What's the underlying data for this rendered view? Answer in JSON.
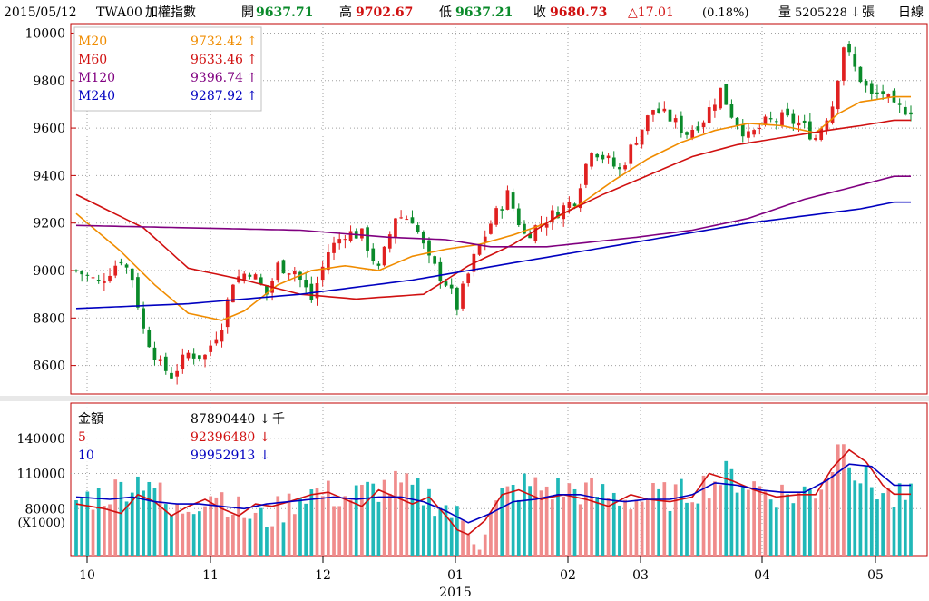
{
  "header": {
    "date": "2015/05/12",
    "symbol": "TWA00",
    "name": "加權指數",
    "open_label": "開",
    "open": "9637.71",
    "high_label": "高",
    "high": "9702.67",
    "low_label": "低",
    "low": "9637.21",
    "close_label": "收",
    "close": "9680.73",
    "change": "△17.01",
    "change_pct": "(0.18%)",
    "volume_label": "量",
    "volume": "5205228",
    "volume_arrow": "↓",
    "volume_unit": "張",
    "period": "日線"
  },
  "colors": {
    "up": "#e02020",
    "down": "#0a8a2a",
    "ma20": "#f08c00",
    "ma60": "#d01010",
    "ma120": "#800080",
    "ma240": "#0000c0",
    "vol_up": "#f08c8c",
    "vol_down": "#20b8b8",
    "vol_ma5": "#d01010",
    "vol_ma10": "#0000c0",
    "grid": "#a0a0a0",
    "axis": "#c00000"
  },
  "price_legend": [
    {
      "name": "M20",
      "value": "9732.42",
      "arrow": "↑"
    },
    {
      "name": "M60",
      "value": "9633.46",
      "arrow": "↑"
    },
    {
      "name": "M120",
      "value": "9396.74",
      "arrow": "↑"
    },
    {
      "name": "M240",
      "value": "9287.92",
      "arrow": "↑"
    }
  ],
  "volume_legend": [
    {
      "name": "金額",
      "value": "87890440",
      "arrow": "↓",
      "unit": "千"
    },
    {
      "name": "5",
      "value": "92396480",
      "arrow": "↓"
    },
    {
      "name": "10",
      "value": "99952913",
      "arrow": "↓"
    }
  ],
  "chart_data": [
    {
      "type": "candlestick",
      "y_ticks": [
        "10000",
        "9800",
        "9600",
        "9400",
        "9200",
        "9000",
        "8800",
        "8600"
      ],
      "ylim": [
        8480,
        10040
      ],
      "x_tick_labels": [
        "10",
        "11",
        "12",
        "01",
        "02",
        "03",
        "04",
        "05"
      ],
      "x_year_label": "2015",
      "sessions": 150,
      "ohlc_anchors": [
        [
          0,
          9000
        ],
        [
          4,
          8950
        ],
        [
          8,
          9050
        ],
        [
          10,
          8970
        ],
        [
          12,
          8750
        ],
        [
          15,
          8600
        ],
        [
          17,
          8560
        ],
        [
          20,
          8650
        ],
        [
          23,
          8640
        ],
        [
          26,
          8780
        ],
        [
          28,
          8960
        ],
        [
          31,
          9000
        ],
        [
          34,
          8900
        ],
        [
          36,
          9020
        ],
        [
          39,
          9000
        ],
        [
          42,
          8880
        ],
        [
          45,
          9080
        ],
        [
          48,
          9160
        ],
        [
          51,
          9150
        ],
        [
          54,
          9000
        ],
        [
          57,
          9230
        ],
        [
          60,
          9220
        ],
        [
          63,
          9040
        ],
        [
          66,
          8950
        ],
        [
          68,
          8850
        ],
        [
          71,
          9050
        ],
        [
          74,
          9200
        ],
        [
          77,
          9320
        ],
        [
          80,
          9150
        ],
        [
          83,
          9200
        ],
        [
          86,
          9250
        ],
        [
          89,
          9300
        ],
        [
          92,
          9520
        ],
        [
          95,
          9460
        ],
        [
          97,
          9420
        ],
        [
          100,
          9560
        ],
        [
          103,
          9680
        ],
        [
          106,
          9640
        ],
        [
          109,
          9580
        ],
        [
          112,
          9640
        ],
        [
          115,
          9760
        ],
        [
          117,
          9660
        ],
        [
          120,
          9560
        ],
        [
          123,
          9620
        ],
        [
          126,
          9640
        ],
        [
          129,
          9620
        ],
        [
          132,
          9560
        ],
        [
          135,
          9700
        ],
        [
          137,
          9950
        ],
        [
          139,
          9850
        ],
        [
          142,
          9730
        ],
        [
          144,
          9750
        ],
        [
          146,
          9680
        ]
      ],
      "series": [
        {
          "name": "M20",
          "points": [
            [
              0,
              9240
            ],
            [
              8,
              9080
            ],
            [
              14,
              8940
            ],
            [
              20,
              8820
            ],
            [
              26,
              8790
            ],
            [
              30,
              8830
            ],
            [
              36,
              8940
            ],
            [
              42,
              9000
            ],
            [
              48,
              9020
            ],
            [
              54,
              9000
            ],
            [
              60,
              9060
            ],
            [
              66,
              9090
            ],
            [
              72,
              9110
            ],
            [
              78,
              9150
            ],
            [
              84,
              9200
            ],
            [
              90,
              9280
            ],
            [
              96,
              9380
            ],
            [
              102,
              9470
            ],
            [
              108,
              9540
            ],
            [
              114,
              9590
            ],
            [
              120,
              9620
            ],
            [
              126,
              9610
            ],
            [
              132,
              9580
            ],
            [
              136,
              9660
            ],
            [
              140,
              9710
            ],
            [
              146,
              9732
            ]
          ]
        },
        {
          "name": "M60",
          "points": [
            [
              0,
              9320
            ],
            [
              12,
              9180
            ],
            [
              20,
              9010
            ],
            [
              30,
              8960
            ],
            [
              40,
              8900
            ],
            [
              50,
              8880
            ],
            [
              56,
              8890
            ],
            [
              62,
              8900
            ],
            [
              70,
              9020
            ],
            [
              78,
              9110
            ],
            [
              86,
              9230
            ],
            [
              94,
              9320
            ],
            [
              102,
              9400
            ],
            [
              110,
              9480
            ],
            [
              118,
              9530
            ],
            [
              126,
              9560
            ],
            [
              134,
              9590
            ],
            [
              140,
              9610
            ],
            [
              146,
              9633
            ]
          ]
        },
        {
          "name": "M120",
          "points": [
            [
              0,
              9190
            ],
            [
              20,
              9180
            ],
            [
              40,
              9170
            ],
            [
              56,
              9140
            ],
            [
              66,
              9130
            ],
            [
              74,
              9100
            ],
            [
              84,
              9100
            ],
            [
              100,
              9140
            ],
            [
              110,
              9170
            ],
            [
              120,
              9220
            ],
            [
              130,
              9300
            ],
            [
              140,
              9360
            ],
            [
              146,
              9397
            ]
          ]
        },
        {
          "name": "M240",
          "points": [
            [
              0,
              8840
            ],
            [
              20,
              8860
            ],
            [
              40,
              8900
            ],
            [
              60,
              8960
            ],
            [
              80,
              9040
            ],
            [
              100,
              9120
            ],
            [
              120,
              9200
            ],
            [
              140,
              9260
            ],
            [
              146,
              9288
            ]
          ]
        }
      ]
    },
    {
      "type": "bar",
      "title": "金額",
      "y_ticks": [
        "140000",
        "110000",
        "80000"
      ],
      "y_unit": "(X1000)",
      "ylim": [
        40000,
        170000
      ],
      "x_tick_labels": [
        "10",
        "11",
        "12",
        "01",
        "02",
        "03",
        "04",
        "05"
      ],
      "volume_anchors": [
        [
          0,
          88000
        ],
        [
          5,
          92000
        ],
        [
          9,
          100000
        ],
        [
          13,
          108000
        ],
        [
          17,
          74000
        ],
        [
          21,
          86000
        ],
        [
          25,
          96000
        ],
        [
          29,
          78000
        ],
        [
          33,
          70000
        ],
        [
          37,
          80000
        ],
        [
          41,
          95000
        ],
        [
          45,
          92000
        ],
        [
          49,
          90000
        ],
        [
          53,
          96000
        ],
        [
          57,
          100000
        ],
        [
          61,
          94000
        ],
        [
          65,
          85000
        ],
        [
          69,
          68000
        ],
        [
          72,
          55000
        ],
        [
          76,
          90000
        ],
        [
          80,
          100000
        ],
        [
          84,
          97000
        ],
        [
          88,
          96000
        ],
        [
          92,
          94000
        ],
        [
          96,
          90000
        ],
        [
          100,
          88000
        ],
        [
          104,
          90000
        ],
        [
          108,
          92000
        ],
        [
          112,
          100000
        ],
        [
          116,
          108000
        ],
        [
          120,
          102000
        ],
        [
          124,
          94000
        ],
        [
          128,
          92000
        ],
        [
          132,
          96000
        ],
        [
          135,
          118000
        ],
        [
          137,
          145000
        ],
        [
          139,
          112000
        ],
        [
          142,
          100000
        ],
        [
          146,
          88000
        ]
      ],
      "series": [
        {
          "name": "5",
          "points": [
            [
              0,
              84000
            ],
            [
              5,
              80000
            ],
            [
              8,
              76000
            ],
            [
              11,
              92000
            ],
            [
              14,
              86000
            ],
            [
              17,
              74000
            ],
            [
              20,
              82000
            ],
            [
              23,
              88000
            ],
            [
              26,
              80000
            ],
            [
              29,
              74000
            ],
            [
              32,
              84000
            ],
            [
              35,
              82000
            ],
            [
              38,
              86000
            ],
            [
              42,
              92000
            ],
            [
              45,
              94000
            ],
            [
              48,
              88000
            ],
            [
              51,
              82000
            ],
            [
              54,
              96000
            ],
            [
              57,
              90000
            ],
            [
              60,
              84000
            ],
            [
              63,
              90000
            ],
            [
              66,
              74000
            ],
            [
              68,
              62000
            ],
            [
              70,
              58000
            ],
            [
              73,
              70000
            ],
            [
              76,
              92000
            ],
            [
              79,
              96000
            ],
            [
              83,
              88000
            ],
            [
              87,
              92000
            ],
            [
              91,
              88000
            ],
            [
              95,
              82000
            ],
            [
              99,
              92000
            ],
            [
              102,
              88000
            ],
            [
              106,
              86000
            ],
            [
              110,
              90000
            ],
            [
              113,
              110000
            ],
            [
              117,
              104000
            ],
            [
              121,
              96000
            ],
            [
              125,
              90000
            ],
            [
              129,
              92000
            ],
            [
              132,
              92000
            ],
            [
              135,
              115000
            ],
            [
              138,
              130000
            ],
            [
              141,
              120000
            ],
            [
              144,
              100000
            ],
            [
              146,
              92400
            ]
          ]
        },
        {
          "name": "10",
          "points": [
            [
              0,
              90000
            ],
            [
              6,
              88000
            ],
            [
              10,
              90000
            ],
            [
              14,
              86000
            ],
            [
              18,
              84000
            ],
            [
              22,
              84000
            ],
            [
              26,
              82000
            ],
            [
              30,
              80000
            ],
            [
              34,
              84000
            ],
            [
              38,
              86000
            ],
            [
              42,
              88000
            ],
            [
              46,
              90000
            ],
            [
              50,
              88000
            ],
            [
              54,
              90000
            ],
            [
              58,
              90000
            ],
            [
              62,
              86000
            ],
            [
              66,
              78000
            ],
            [
              70,
              68000
            ],
            [
              74,
              76000
            ],
            [
              78,
              86000
            ],
            [
              82,
              88000
            ],
            [
              86,
              92000
            ],
            [
              90,
              92000
            ],
            [
              94,
              88000
            ],
            [
              98,
              86000
            ],
            [
              102,
              88000
            ],
            [
              106,
              88000
            ],
            [
              110,
              92000
            ],
            [
              114,
              102000
            ],
            [
              118,
              100000
            ],
            [
              122,
              96000
            ],
            [
              126,
              94000
            ],
            [
              130,
              94000
            ],
            [
              134,
              104000
            ],
            [
              138,
              118000
            ],
            [
              142,
              116000
            ],
            [
              146,
              99950
            ]
          ]
        }
      ]
    }
  ]
}
